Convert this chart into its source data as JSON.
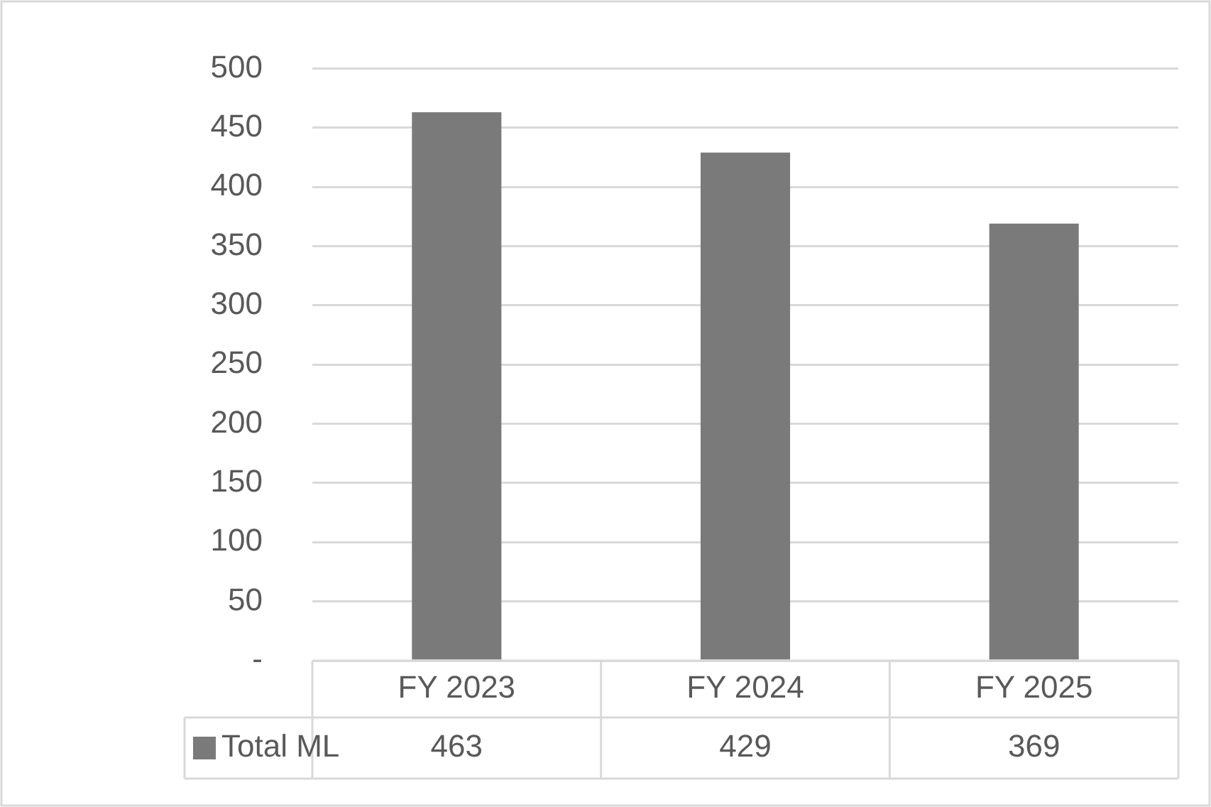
{
  "chart_data": {
    "type": "bar",
    "categories": [
      "FY 2023",
      "FY 2024",
      "FY 2025"
    ],
    "series": [
      {
        "name": "Total ML",
        "color": "#7a7a7b",
        "values": [
          463,
          429,
          369
        ]
      }
    ],
    "ylim": [
      0,
      500
    ],
    "yticks": [
      {
        "value": 0,
        "label": "-"
      },
      50,
      100,
      150,
      200,
      250,
      300,
      350,
      400,
      450,
      500
    ],
    "grid": "y",
    "legend": "bottom",
    "data_labels": true
  }
}
